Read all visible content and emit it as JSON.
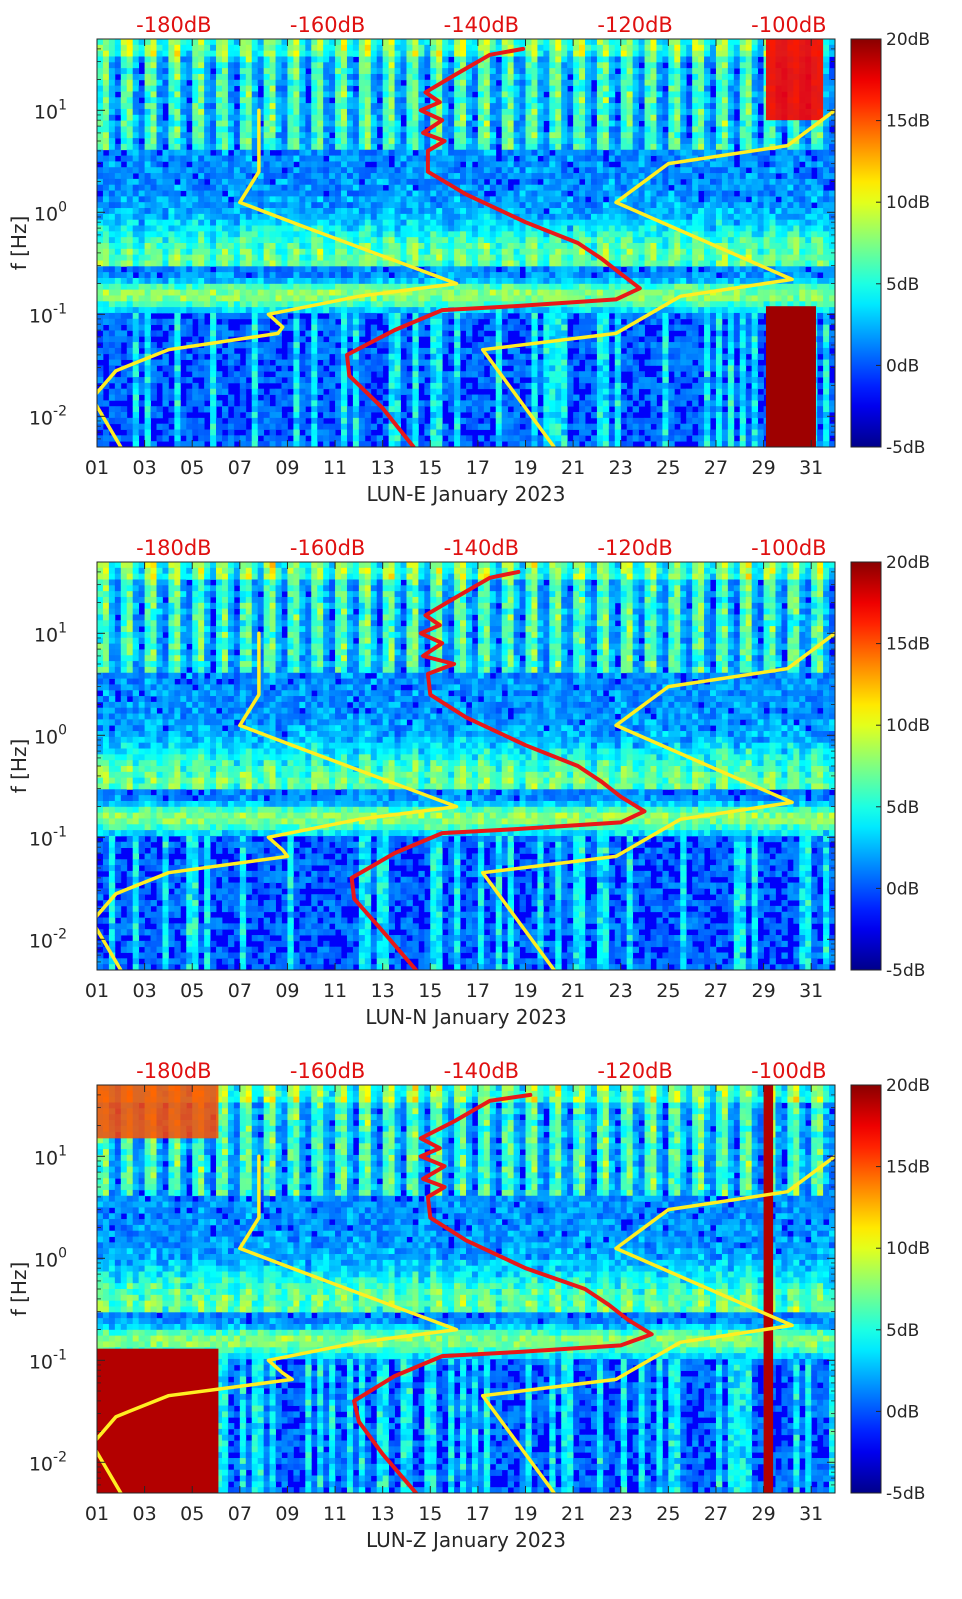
{
  "chart_data": [
    {
      "type": "heatmap",
      "station": "LUN-E",
      "xlabel": "LUN-E January 2023",
      "ylabel": "f [Hz]",
      "x_tick_labels": [
        "01",
        "03",
        "05",
        "07",
        "09",
        "11",
        "13",
        "15",
        "17",
        "19",
        "21",
        "23",
        "25",
        "27",
        "29",
        "31"
      ],
      "x_ticks_day": [
        1,
        3,
        5,
        7,
        9,
        11,
        13,
        15,
        17,
        19,
        21,
        23,
        25,
        27,
        29,
        31
      ],
      "xlim": [
        1,
        32
      ],
      "y_tick_labels": [
        "10",
        "10",
        "10",
        "10"
      ],
      "y_tick_exponents": [
        "-2",
        "-1",
        "0",
        "1"
      ],
      "y_ticks_hz": [
        0.01,
        0.1,
        1,
        10
      ],
      "ylim_hz": [
        0.005,
        50
      ],
      "y_scale": "log",
      "top_axis_labels": [
        "-180dB",
        "-160dB",
        "-140dB",
        "-120dB",
        "-100dB"
      ],
      "top_axis_values_db": [
        -180,
        -160,
        -140,
        -120,
        -100
      ],
      "top_axis_xlim_db": [
        -190,
        -94
      ],
      "colorbar_labels": [
        "20dB",
        "15dB",
        "10dB",
        "5dB",
        "0dB",
        "-5dB"
      ],
      "colorbar_values_db": [
        20,
        15,
        10,
        5,
        0,
        -5
      ],
      "colormap": "jet",
      "series": [
        {
          "color": "#ffee22",
          "points": [
            [
              7.8,
              10
            ],
            [
              7.8,
              2.5
            ],
            [
              7.0,
              1.25
            ],
            [
              9.5,
              0.75
            ],
            [
              16.1,
              0.2
            ],
            [
              12.0,
              0.15
            ],
            [
              8.2,
              0.1
            ],
            [
              8.8,
              0.075
            ],
            [
              8.6,
              0.065
            ],
            [
              4.0,
              0.045
            ],
            [
              1.8,
              0.028
            ],
            [
              0.8,
              0.015
            ],
            [
              2.0,
              0.005
            ]
          ]
        },
        {
          "color": "#ffee22",
          "points": [
            [
              32.0,
              10
            ],
            [
              30.0,
              4.5
            ],
            [
              25.0,
              3.0
            ],
            [
              22.8,
              1.25
            ],
            [
              30.2,
              0.22
            ],
            [
              25.5,
              0.15
            ],
            [
              22.8,
              0.065
            ],
            [
              17.2,
              0.045
            ],
            [
              20.2,
              0.005
            ]
          ]
        },
        {
          "color": "#e81818",
          "points": [
            [
              18.9,
              40
            ],
            [
              17.5,
              35
            ],
            [
              16.0,
              22
            ],
            [
              14.8,
              15
            ],
            [
              15.4,
              12
            ],
            [
              14.6,
              10
            ],
            [
              15.5,
              8
            ],
            [
              14.7,
              6
            ],
            [
              15.6,
              5
            ],
            [
              14.9,
              4
            ],
            [
              14.9,
              2.5
            ],
            [
              16.5,
              1.5
            ],
            [
              19.0,
              0.8
            ],
            [
              21.2,
              0.5
            ],
            [
              22.2,
              0.35
            ],
            [
              23.0,
              0.25
            ],
            [
              23.8,
              0.18
            ],
            [
              22.8,
              0.14
            ],
            [
              18.5,
              0.12
            ],
            [
              15.5,
              0.11
            ],
            [
              13.5,
              0.07
            ],
            [
              11.5,
              0.04
            ],
            [
              11.6,
              0.025
            ],
            [
              13.0,
              0.012
            ],
            [
              14.3,
              0.005
            ]
          ]
        }
      ]
    },
    {
      "type": "heatmap",
      "station": "LUN-N",
      "xlabel": "LUN-N January 2023",
      "ylabel": "f [Hz]",
      "x_tick_labels": [
        "01",
        "03",
        "05",
        "07",
        "09",
        "11",
        "13",
        "15",
        "17",
        "19",
        "21",
        "23",
        "25",
        "27",
        "29",
        "31"
      ],
      "x_ticks_day": [
        1,
        3,
        5,
        7,
        9,
        11,
        13,
        15,
        17,
        19,
        21,
        23,
        25,
        27,
        29,
        31
      ],
      "xlim": [
        1,
        32
      ],
      "y_tick_labels": [
        "10",
        "10",
        "10",
        "10"
      ],
      "y_tick_exponents": [
        "-2",
        "-1",
        "0",
        "1"
      ],
      "y_ticks_hz": [
        0.01,
        0.1,
        1,
        10
      ],
      "ylim_hz": [
        0.005,
        50
      ],
      "y_scale": "log",
      "top_axis_labels": [
        "-180dB",
        "-160dB",
        "-140dB",
        "-120dB",
        "-100dB"
      ],
      "top_axis_values_db": [
        -180,
        -160,
        -140,
        -120,
        -100
      ],
      "top_axis_xlim_db": [
        -190,
        -94
      ],
      "colorbar_labels": [
        "20dB",
        "15dB",
        "10dB",
        "5dB",
        "0dB",
        "-5dB"
      ],
      "colorbar_values_db": [
        20,
        15,
        10,
        5,
        0,
        -5
      ],
      "colormap": "jet",
      "series": [
        {
          "color": "#ffee22",
          "points": [
            [
              7.8,
              10
            ],
            [
              7.8,
              2.5
            ],
            [
              7.0,
              1.25
            ],
            [
              9.5,
              0.75
            ],
            [
              16.1,
              0.2
            ],
            [
              12.0,
              0.15
            ],
            [
              8.2,
              0.1
            ],
            [
              8.8,
              0.075
            ],
            [
              9.0,
              0.065
            ],
            [
              4.0,
              0.045
            ],
            [
              1.8,
              0.028
            ],
            [
              0.8,
              0.015
            ],
            [
              2.0,
              0.005
            ]
          ]
        },
        {
          "color": "#ffee22",
          "points": [
            [
              32.0,
              10
            ],
            [
              30.0,
              4.5
            ],
            [
              25.0,
              3.0
            ],
            [
              22.8,
              1.25
            ],
            [
              30.2,
              0.22
            ],
            [
              25.5,
              0.15
            ],
            [
              22.8,
              0.065
            ],
            [
              17.2,
              0.045
            ],
            [
              20.2,
              0.005
            ]
          ]
        },
        {
          "color": "#e81818",
          "points": [
            [
              18.7,
              40
            ],
            [
              17.5,
              35
            ],
            [
              16.0,
              22
            ],
            [
              14.8,
              15
            ],
            [
              15.4,
              12
            ],
            [
              14.6,
              10
            ],
            [
              15.5,
              8
            ],
            [
              14.7,
              6
            ],
            [
              16.0,
              5
            ],
            [
              14.9,
              4
            ],
            [
              15.0,
              2.5
            ],
            [
              16.5,
              1.5
            ],
            [
              19.0,
              0.8
            ],
            [
              21.2,
              0.5
            ],
            [
              22.2,
              0.35
            ],
            [
              23.0,
              0.25
            ],
            [
              24.0,
              0.18
            ],
            [
              23.0,
              0.14
            ],
            [
              18.5,
              0.12
            ],
            [
              15.5,
              0.11
            ],
            [
              13.5,
              0.07
            ],
            [
              11.7,
              0.04
            ],
            [
              11.8,
              0.025
            ],
            [
              13.0,
              0.012
            ],
            [
              14.4,
              0.005
            ]
          ]
        }
      ]
    },
    {
      "type": "heatmap",
      "station": "LUN-Z",
      "xlabel": "LUN-Z January 2023",
      "ylabel": "f [Hz]",
      "x_tick_labels": [
        "01",
        "03",
        "05",
        "07",
        "09",
        "11",
        "13",
        "15",
        "17",
        "19",
        "21",
        "23",
        "25",
        "27",
        "29",
        "31"
      ],
      "x_ticks_day": [
        1,
        3,
        5,
        7,
        9,
        11,
        13,
        15,
        17,
        19,
        21,
        23,
        25,
        27,
        29,
        31
      ],
      "xlim": [
        1,
        32
      ],
      "y_tick_labels": [
        "10",
        "10",
        "10",
        "10"
      ],
      "y_tick_exponents": [
        "-2",
        "-1",
        "0",
        "1"
      ],
      "y_ticks_hz": [
        0.01,
        0.1,
        1,
        10
      ],
      "ylim_hz": [
        0.005,
        50
      ],
      "y_scale": "log",
      "top_axis_labels": [
        "-180dB",
        "-160dB",
        "-140dB",
        "-120dB",
        "-100dB"
      ],
      "top_axis_values_db": [
        -180,
        -160,
        -140,
        -120,
        -100
      ],
      "top_axis_xlim_db": [
        -190,
        -94
      ],
      "colorbar_labels": [
        "20dB",
        "15dB",
        "10dB",
        "5dB",
        "0dB",
        "-5dB"
      ],
      "colorbar_values_db": [
        20,
        15,
        10,
        5,
        0,
        -5
      ],
      "colormap": "jet",
      "series": [
        {
          "color": "#ffee22",
          "points": [
            [
              7.8,
              10
            ],
            [
              7.8,
              2.5
            ],
            [
              7.0,
              1.25
            ],
            [
              9.5,
              0.75
            ],
            [
              16.1,
              0.2
            ],
            [
              12.0,
              0.15
            ],
            [
              8.2,
              0.1
            ],
            [
              8.8,
              0.075
            ],
            [
              9.2,
              0.065
            ],
            [
              4.0,
              0.045
            ],
            [
              1.8,
              0.028
            ],
            [
              0.8,
              0.015
            ],
            [
              2.0,
              0.005
            ]
          ]
        },
        {
          "color": "#ffee22",
          "points": [
            [
              32.0,
              10
            ],
            [
              30.0,
              4.5
            ],
            [
              25.0,
              3.0
            ],
            [
              22.8,
              1.25
            ],
            [
              30.2,
              0.22
            ],
            [
              25.5,
              0.15
            ],
            [
              22.8,
              0.065
            ],
            [
              17.2,
              0.045
            ],
            [
              20.2,
              0.005
            ]
          ]
        },
        {
          "color": "#e81818",
          "points": [
            [
              19.2,
              40
            ],
            [
              17.5,
              35
            ],
            [
              16.0,
              22
            ],
            [
              14.6,
              15
            ],
            [
              15.4,
              12
            ],
            [
              14.6,
              10
            ],
            [
              15.6,
              8
            ],
            [
              14.7,
              6
            ],
            [
              15.6,
              5
            ],
            [
              14.9,
              4
            ],
            [
              15.0,
              2.5
            ],
            [
              16.5,
              1.5
            ],
            [
              19.0,
              0.8
            ],
            [
              21.5,
              0.5
            ],
            [
              22.5,
              0.35
            ],
            [
              23.3,
              0.25
            ],
            [
              24.3,
              0.18
            ],
            [
              23.0,
              0.14
            ],
            [
              18.5,
              0.12
            ],
            [
              15.5,
              0.11
            ],
            [
              13.5,
              0.07
            ],
            [
              11.8,
              0.04
            ],
            [
              12.0,
              0.025
            ],
            [
              13.0,
              0.012
            ],
            [
              14.4,
              0.005
            ]
          ]
        }
      ]
    }
  ]
}
